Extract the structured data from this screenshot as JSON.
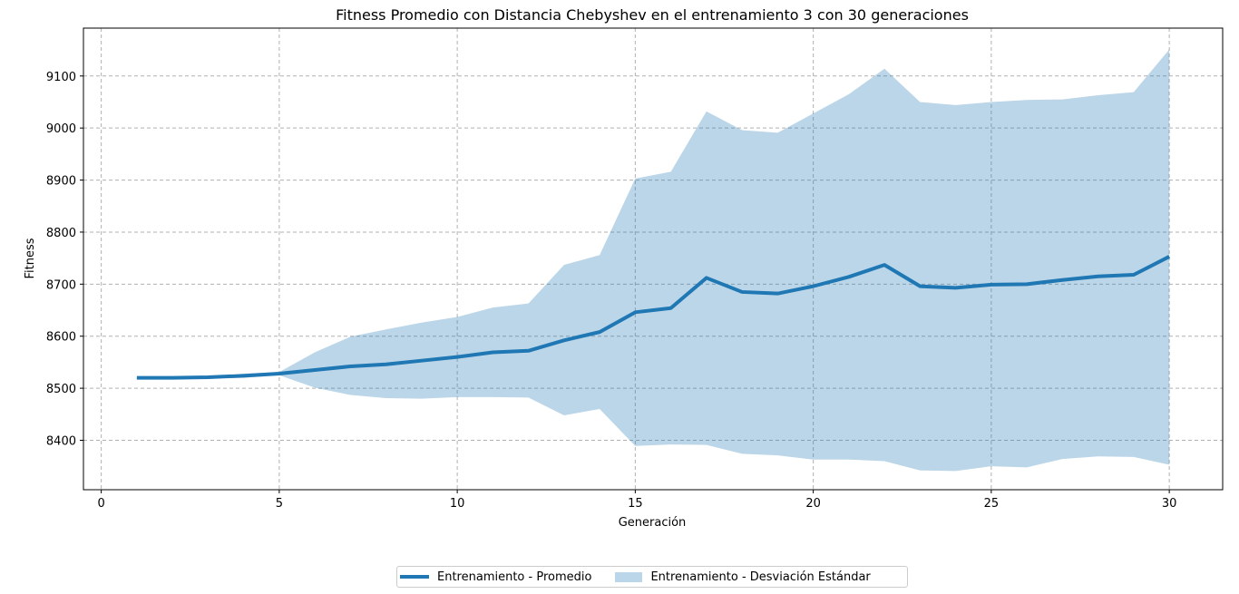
{
  "chart_data": {
    "type": "line",
    "title": "Fitness Promedio con Distancia Chebyshev en el entrenamiento 3 con 30 generaciones",
    "xlabel": "Generación",
    "ylabel": "Fitness",
    "xlim": [
      -0.5,
      31.5
    ],
    "ylim": [
      8305,
      9192
    ],
    "xticks": [
      0,
      5,
      10,
      15,
      20,
      25,
      30
    ],
    "yticks": [
      8400,
      8500,
      8600,
      8700,
      8800,
      8900,
      9000,
      9100
    ],
    "grid": true,
    "legend_position": "bottom-center",
    "x": [
      1,
      2,
      3,
      4,
      5,
      6,
      7,
      8,
      9,
      10,
      11,
      12,
      13,
      14,
      15,
      16,
      17,
      18,
      19,
      20,
      21,
      22,
      23,
      24,
      25,
      26,
      27,
      28,
      29,
      30
    ],
    "series": [
      {
        "name": "Entrenamiento  - Promedio",
        "kind": "line",
        "color": "#1f77b4",
        "values": [
          8520,
          8520,
          8521,
          8524,
          8528,
          8535,
          8542,
          8546,
          8553,
          8560,
          8569,
          8572,
          8592,
          8608,
          8646,
          8654,
          8712,
          8685,
          8682,
          8696,
          8714,
          8737,
          8696,
          8693,
          8699,
          8700,
          8708,
          8715,
          8718,
          8753
        ]
      },
      {
        "name": "Entrenamiento  - Desviación Estándar",
        "kind": "band",
        "color": "#1f77b4",
        "opacity": 0.3,
        "upper": [
          8521,
          8521,
          8522,
          8528,
          8531,
          8569,
          8599,
          8613,
          8626,
          8637,
          8655,
          8663,
          8737,
          8756,
          8903,
          8916,
          9032,
          8996,
          8991,
          9028,
          9065,
          9114,
          9050,
          9044,
          9050,
          9054,
          9055,
          9063,
          9069,
          9151
        ],
        "lower": [
          8519,
          8519,
          8520,
          8520,
          8525,
          8501,
          8487,
          8481,
          8480,
          8483,
          8483,
          8482,
          8448,
          8460,
          8389,
          8392,
          8391,
          8374,
          8371,
          8363,
          8363,
          8360,
          8342,
          8341,
          8350,
          8348,
          8364,
          8369,
          8368,
          8353
        ]
      }
    ]
  }
}
